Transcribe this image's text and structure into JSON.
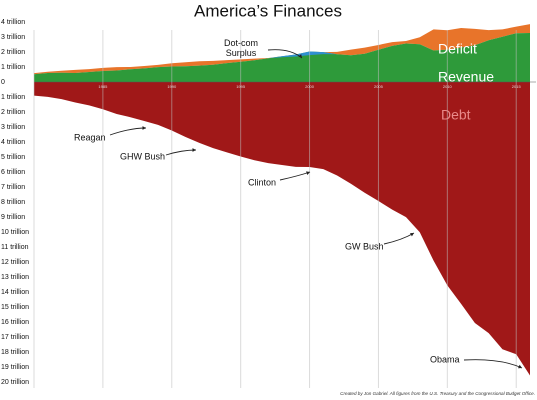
{
  "chart_data": {
    "type": "area",
    "title": "America’s Finances",
    "footnote": "Created by Jon Gabriel. All figures from the U.S. Treasury and the Congressional Budget Office.",
    "x": [
      1980,
      1981,
      1982,
      1983,
      1984,
      1985,
      1986,
      1987,
      1988,
      1989,
      1990,
      1991,
      1992,
      1993,
      1994,
      1995,
      1996,
      1997,
      1998,
      1999,
      2000,
      2001,
      2002,
      2003,
      2004,
      2005,
      2006,
      2007,
      2008,
      2009,
      2010,
      2011,
      2012,
      2013,
      2014,
      2015,
      2016
    ],
    "xlim": [
      1980,
      2016
    ],
    "xticks": [
      1985,
      1990,
      1995,
      2000,
      2005,
      2010,
      2015
    ],
    "ylim": [
      -20,
      4
    ],
    "yticks": [
      {
        "value": 4,
        "label": "4 trillion"
      },
      {
        "value": 3,
        "label": "3 trillion"
      },
      {
        "value": 2,
        "label": "2 trillion"
      },
      {
        "value": 1,
        "label": "1 trillion"
      },
      0,
      {
        "value": -1,
        "label": "1 trillion"
      },
      {
        "value": -2,
        "label": "2 trillion"
      },
      {
        "value": -3,
        "label": "3 trillion"
      },
      {
        "value": -4,
        "label": "4 trillion"
      },
      {
        "value": -5,
        "label": "5 trillion"
      },
      {
        "value": -6,
        "label": "6 trillion"
      },
      {
        "value": -7,
        "label": "7 trillion"
      },
      {
        "value": -8,
        "label": "8 trillion"
      },
      {
        "value": -9,
        "label": "9 trillion"
      },
      {
        "value": -10,
        "label": "10 trillion"
      },
      {
        "value": -11,
        "label": "11 trillion"
      },
      {
        "value": -12,
        "label": "12 trillion"
      },
      {
        "value": -13,
        "label": "13 trillion"
      },
      {
        "value": -14,
        "label": "14 trillion"
      },
      {
        "value": -15,
        "label": "15 trillion"
      },
      {
        "value": -16,
        "label": "16 trillion"
      },
      {
        "value": -17,
        "label": "17 trillion"
      },
      {
        "value": -18,
        "label": "18 trillion"
      },
      {
        "value": -19,
        "label": "19 trillion"
      },
      {
        "value": -20,
        "label": "20 trillion"
      }
    ],
    "grid": true,
    "series": [
      {
        "name": "Revenue",
        "color": "#2e9a3a",
        "values": [
          0.52,
          0.6,
          0.62,
          0.6,
          0.67,
          0.73,
          0.77,
          0.85,
          0.91,
          0.99,
          1.03,
          1.05,
          1.09,
          1.15,
          1.26,
          1.35,
          1.45,
          1.58,
          1.72,
          1.83,
          2.03,
          1.99,
          1.85,
          1.78,
          1.88,
          2.15,
          2.41,
          2.57,
          2.52,
          2.1,
          2.16,
          2.3,
          2.45,
          2.78,
          3.02,
          3.25,
          3.27
        ]
      },
      {
        "name": "Deficit",
        "color": "#e8742a",
        "values": [
          0.07,
          0.08,
          0.13,
          0.21,
          0.19,
          0.21,
          0.22,
          0.15,
          0.16,
          0.15,
          0.22,
          0.27,
          0.29,
          0.26,
          0.2,
          0.16,
          0.11,
          0.02,
          0,
          0,
          0,
          0,
          0.16,
          0.38,
          0.41,
          0.32,
          0.25,
          0.16,
          0.46,
          1.41,
          1.29,
          1.3,
          1.09,
          0.68,
          0.49,
          0.44,
          0.59
        ]
      },
      {
        "name": "Dot-com Surplus",
        "color": "#2f8fd0",
        "values": [
          0,
          0,
          0,
          0,
          0,
          0,
          0,
          0,
          0,
          0,
          0,
          0,
          0,
          0,
          0,
          0,
          0,
          0,
          0.07,
          0.13,
          0.24,
          0.13,
          0,
          0,
          0,
          0,
          0,
          0,
          0,
          0,
          0,
          0,
          0,
          0,
          0,
          0,
          0
        ]
      },
      {
        "name": "Debt",
        "color": "#a01818",
        "values": [
          -0.91,
          -0.99,
          -1.14,
          -1.37,
          -1.56,
          -1.82,
          -2.13,
          -2.35,
          -2.6,
          -2.86,
          -3.23,
          -3.67,
          -4.06,
          -4.41,
          -4.69,
          -4.97,
          -5.22,
          -5.41,
          -5.53,
          -5.66,
          -5.67,
          -5.81,
          -6.23,
          -6.78,
          -7.38,
          -7.93,
          -8.51,
          -9.01,
          -10.02,
          -11.91,
          -13.56,
          -14.79,
          -16.07,
          -16.74,
          -17.82,
          -18.15,
          -19.57
        ]
      }
    ],
    "annotations": [
      "Reagan",
      "GHW Bush",
      "Clinton",
      "GW Bush",
      "Obama"
    ]
  }
}
